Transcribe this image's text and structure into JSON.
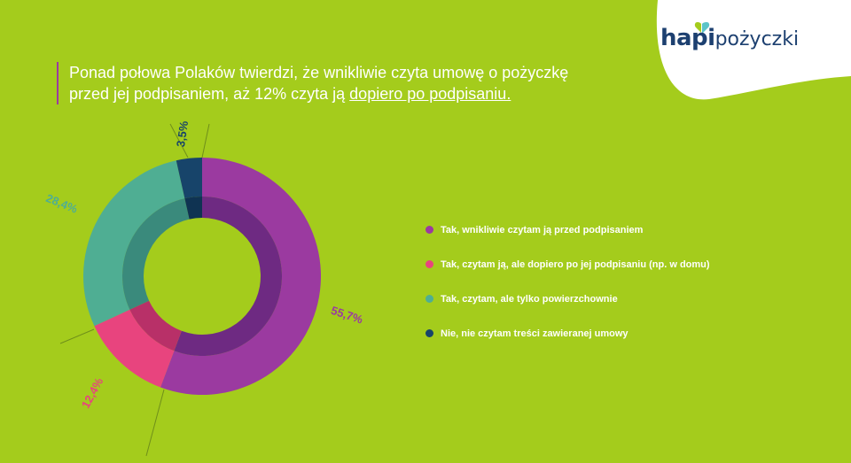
{
  "brand": {
    "logo_main": "hapi",
    "logo_sub": "pożyczki",
    "colors": {
      "background": "#a4cc1c",
      "logo_text": "#1d4070"
    }
  },
  "headline": {
    "line1": "Ponad połowa Polaków twierdzi, że wnikliwie czyta umowę o pożyczkę",
    "line2_start": "przed jej podpisaniem, aż 12% czyta ją ",
    "line2_highlight": "dopiero po podpisaniu."
  },
  "chart_data": {
    "type": "pie",
    "donut": true,
    "slices": [
      {
        "label": "Tak, wnikliwie czytam ją przed podpisaniem",
        "value": 55.7,
        "value_label": "55,7%",
        "color": "#9b3aa0",
        "inner_color": "#6e2a82"
      },
      {
        "label": "Tak, czytam ją, ale dopiero po jej podpisaniu (np. w domu)",
        "value": 12.4,
        "value_label": "12,4%",
        "color": "#e8447e",
        "inner_color": "#b83068"
      },
      {
        "label": "Tak, czytam, ale tylko powierzchownie",
        "value": 28.4,
        "value_label": "28,4%",
        "color": "#4fae93",
        "inner_color": "#3a8a7c"
      },
      {
        "label": "Nie, nie czytam treści zawieranej umowy",
        "value": 3.5,
        "value_label": "3,5%",
        "color": "#17446a",
        "inner_color": "#0f3352"
      }
    ],
    "legend_position": "right"
  }
}
